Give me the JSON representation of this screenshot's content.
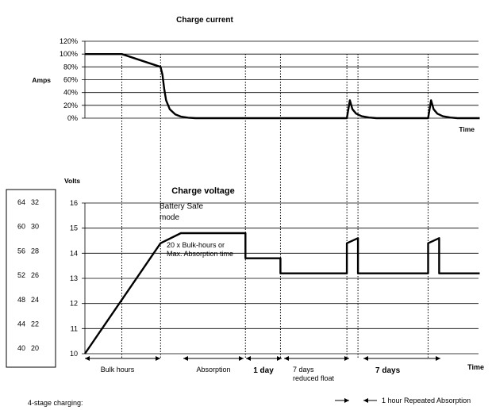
{
  "chart_data": [
    {
      "type": "line",
      "title": "Charge current",
      "ylabel": "Amps",
      "xlabel": "Time",
      "y_ticks": [
        "0%",
        "20%",
        "40%",
        "60%",
        "80%",
        "100%",
        "120%"
      ],
      "ylim": [
        0,
        120
      ],
      "grid": true,
      "series": [
        {
          "x": [
            0,
            1.0,
            2.05,
            2.1,
            2.15,
            2.2,
            2.3,
            2.45,
            2.6,
            2.8,
            3.0,
            7.1,
            7.18,
            7.25,
            7.35,
            7.5,
            7.7,
            7.9,
            9.3,
            9.38,
            9.45,
            9.55,
            9.7,
            9.9,
            10.1,
            10.7
          ],
          "y": [
            100,
            100,
            80,
            68,
            45,
            28,
            14,
            6,
            2.5,
            0.8,
            0,
            0,
            28,
            14,
            7,
            3,
            1,
            0,
            0,
            28,
            14,
            7,
            3,
            1,
            0,
            0
          ]
        }
      ]
    },
    {
      "type": "line",
      "title": "Charge voltage",
      "ylabel": "Volts",
      "xlabel": "Time",
      "y_ticks": [
        "10",
        "11",
        "12",
        "13",
        "14",
        "15",
        "16"
      ],
      "ylim": [
        10,
        16
      ],
      "grid": true,
      "series": [
        {
          "x": [
            0,
            2.05,
            2.6,
            4.35,
            4.35,
            5.3,
            5.3,
            7.1,
            7.1,
            7.4,
            7.4,
            9.3,
            9.3,
            9.6,
            9.6,
            10.7
          ],
          "y": [
            10,
            14.4,
            14.8,
            14.8,
            13.8,
            13.8,
            13.2,
            13.2,
            14.4,
            14.6,
            13.2,
            13.2,
            14.4,
            14.6,
            13.2,
            13.2
          ]
        }
      ]
    }
  ],
  "phase_boundaries": [
    1.0,
    2.05,
    4.35,
    5.3,
    7.1,
    7.4,
    9.3
  ],
  "voltage_scale": [
    {
      "v24": "64",
      "v12": "32"
    },
    {
      "v24": "60",
      "v12": "30"
    },
    {
      "v24": "56",
      "v12": "28"
    },
    {
      "v24": "52",
      "v12": "26"
    },
    {
      "v24": "48",
      "v12": "24"
    },
    {
      "v24": "44",
      "v12": "22"
    },
    {
      "v24": "40",
      "v12": "20"
    }
  ],
  "annotations": {
    "battery_safe_1": "Battery Safe",
    "battery_safe_2": "mode",
    "absorption_time_1": "20 x Bulk-hours or",
    "absorption_time_2": "Max. Absorption time"
  },
  "phases": {
    "bulk": "Bulk hours",
    "absorption": "Absorption",
    "one_day": "1 day",
    "reduced_float_1": "7 days",
    "reduced_float_2": "reduced float",
    "seven_days": "7 days",
    "repeated_absorption": "1 hour Repeated Absorption"
  },
  "caption": "4-stage charging:"
}
